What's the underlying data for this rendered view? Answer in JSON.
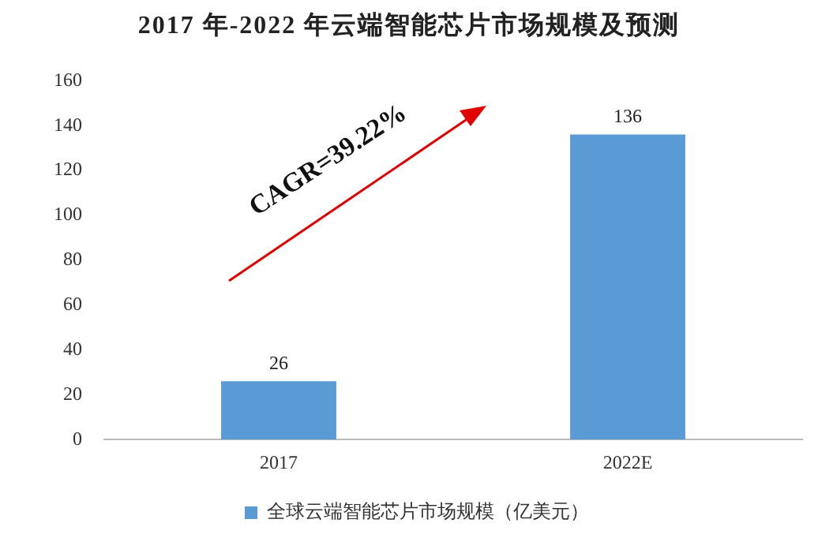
{
  "chart_data": {
    "type": "bar",
    "title": "2017 年-2022 年云端智能芯片市场规模及预测",
    "categories": [
      "2017",
      "2022E"
    ],
    "series": [
      {
        "name": "全球云端智能芯片市场规模（亿美元）",
        "color": "#5b9bd5",
        "values": [
          26,
          136
        ]
      }
    ],
    "ylim": [
      0,
      160
    ],
    "yticks": [
      0,
      20,
      40,
      60,
      80,
      100,
      120,
      140,
      160
    ],
    "grid": false,
    "legend": "bottom",
    "data_labels": true,
    "annotations": [
      "CAGR=39.22%"
    ]
  }
}
